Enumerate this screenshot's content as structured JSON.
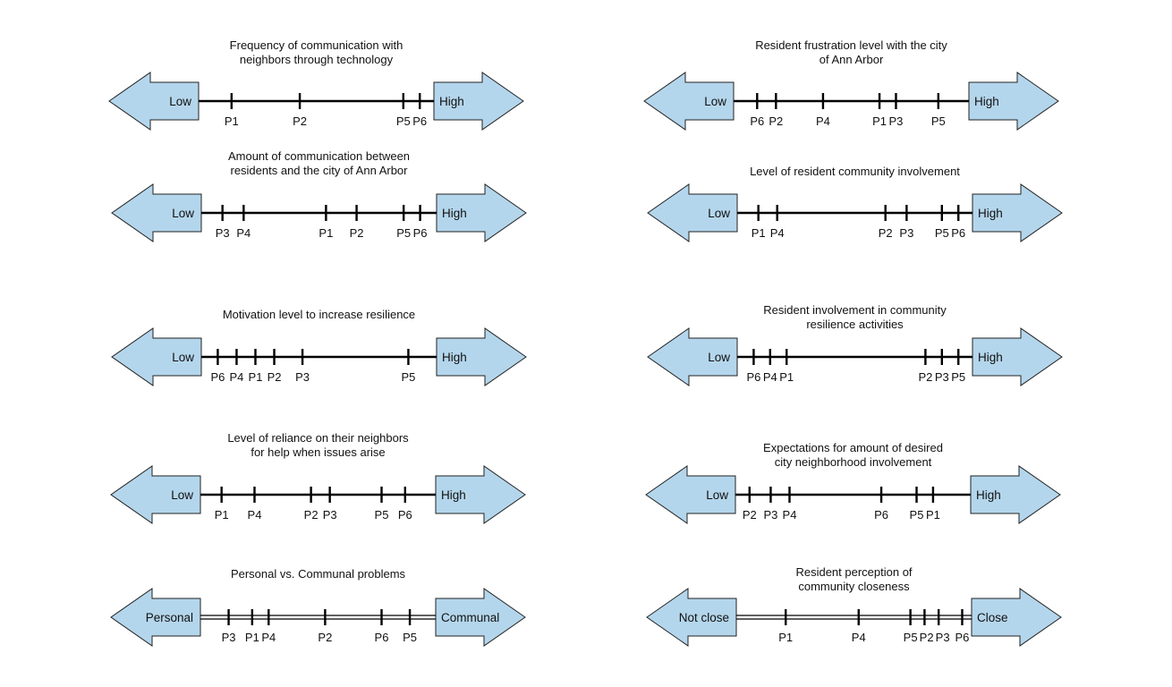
{
  "colors": {
    "arrow_fill": "#b4d6ec",
    "arrow_stroke": "#222222",
    "line": "#000000"
  },
  "scales": [
    {
      "title": [
        "Frequency of communication with",
        "neighbors through technology"
      ],
      "low": "Low",
      "high": "High",
      "line_style": "single",
      "markers": [
        {
          "label": "P1",
          "pos": 0.14
        },
        {
          "label": "P2",
          "pos": 0.43
        },
        {
          "label": "P5",
          "pos": 0.87
        },
        {
          "label": "P6",
          "pos": 0.94
        }
      ]
    },
    {
      "title": [
        "Resident frustration level with the city",
        "of Ann Arbor"
      ],
      "low": "Low",
      "high": "High",
      "line_style": "single",
      "markers": [
        {
          "label": "P6",
          "pos": 0.1
        },
        {
          "label": "P2",
          "pos": 0.18
        },
        {
          "label": "P4",
          "pos": 0.38
        },
        {
          "label": "P1",
          "pos": 0.62
        },
        {
          "label": "P3",
          "pos": 0.69
        },
        {
          "label": "P5",
          "pos": 0.87
        }
      ]
    },
    {
      "title": [
        "Amount of communication between",
        "residents and the city of Ann Arbor"
      ],
      "low": "Low",
      "high": "High",
      "line_style": "single",
      "markers": [
        {
          "label": "P3",
          "pos": 0.09
        },
        {
          "label": "P4",
          "pos": 0.18
        },
        {
          "label": "P1",
          "pos": 0.53
        },
        {
          "label": "P2",
          "pos": 0.66
        },
        {
          "label": "P5",
          "pos": 0.86
        },
        {
          "label": "P6",
          "pos": 0.93
        }
      ]
    },
    {
      "title": [
        "Level of resident community involvement"
      ],
      "low": "Low",
      "high": "High",
      "line_style": "single",
      "markers": [
        {
          "label": "P1",
          "pos": 0.09
        },
        {
          "label": "P4",
          "pos": 0.17
        },
        {
          "label": "P2",
          "pos": 0.63
        },
        {
          "label": "P3",
          "pos": 0.72
        },
        {
          "label": "P5",
          "pos": 0.87
        },
        {
          "label": "P6",
          "pos": 0.94
        }
      ]
    },
    {
      "title": [
        "Motivation level to increase resilience"
      ],
      "low": "Low",
      "high": "High",
      "line_style": "single",
      "markers": [
        {
          "label": "P6",
          "pos": 0.07
        },
        {
          "label": "P4",
          "pos": 0.15
        },
        {
          "label": "P1",
          "pos": 0.23
        },
        {
          "label": "P2",
          "pos": 0.31
        },
        {
          "label": "P3",
          "pos": 0.43
        },
        {
          "label": "P5",
          "pos": 0.88
        }
      ]
    },
    {
      "title": [
        "Resident involvement in community",
        "resilience activities"
      ],
      "low": "Low",
      "high": "High",
      "line_style": "single",
      "markers": [
        {
          "label": "P6",
          "pos": 0.07
        },
        {
          "label": "P4",
          "pos": 0.14
        },
        {
          "label": "P1",
          "pos": 0.21
        },
        {
          "label": "P2",
          "pos": 0.8
        },
        {
          "label": "P3",
          "pos": 0.87
        },
        {
          "label": "P5",
          "pos": 0.94
        }
      ]
    },
    {
      "title": [
        "Level of reliance on their neighbors",
        "for help when issues arise"
      ],
      "low": "Low",
      "high": "High",
      "line_style": "single",
      "markers": [
        {
          "label": "P1",
          "pos": 0.09
        },
        {
          "label": "P4",
          "pos": 0.23
        },
        {
          "label": "P2",
          "pos": 0.47
        },
        {
          "label": "P3",
          "pos": 0.55
        },
        {
          "label": "P5",
          "pos": 0.77
        },
        {
          "label": "P6",
          "pos": 0.87
        }
      ]
    },
    {
      "title": [
        "Expectations for amount of desired",
        "city neighborhood involvement"
      ],
      "low": "Low",
      "high": "High",
      "line_style": "single",
      "markers": [
        {
          "label": "P2",
          "pos": 0.06
        },
        {
          "label": "P3",
          "pos": 0.15
        },
        {
          "label": "P4",
          "pos": 0.23
        },
        {
          "label": "P6",
          "pos": 0.62
        },
        {
          "label": "P5",
          "pos": 0.77
        },
        {
          "label": "P1",
          "pos": 0.84
        }
      ]
    },
    {
      "title": [
        "Personal vs. Communal problems"
      ],
      "low": "Personal",
      "high": "Communal",
      "line_style": "double",
      "markers": [
        {
          "label": "P3",
          "pos": 0.12
        },
        {
          "label": "P1",
          "pos": 0.22
        },
        {
          "label": "P4",
          "pos": 0.29
        },
        {
          "label": "P2",
          "pos": 0.53
        },
        {
          "label": "P6",
          "pos": 0.77
        },
        {
          "label": "P5",
          "pos": 0.89
        }
      ]
    },
    {
      "title": [
        "Resident perception of",
        "community closeness"
      ],
      "low": "Not close",
      "high": "Close",
      "line_style": "double",
      "markers": [
        {
          "label": "P1",
          "pos": 0.21
        },
        {
          "label": "P4",
          "pos": 0.52
        },
        {
          "label": "P5",
          "pos": 0.74
        },
        {
          "label": "P2",
          "pos": 0.8
        },
        {
          "label": "P3",
          "pos": 0.86
        },
        {
          "label": "P6",
          "pos": 0.96
        }
      ]
    }
  ]
}
